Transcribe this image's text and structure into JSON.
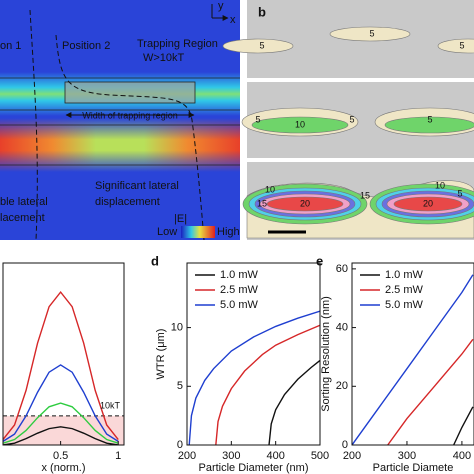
{
  "panel_a": {
    "texts": {
      "axis_x": "x",
      "axis_y": "y",
      "position_1": "on 1",
      "position_2": "Position 2",
      "trapping_region": "Trapping Region",
      "trapping_condition": "W>10kT",
      "width_label": "Width of trapping region",
      "left_note_1": "ble lateral",
      "left_note_2": "lacement",
      "right_note_1": "Significant lateral",
      "right_note_2": "displacement",
      "colorbar_title": "|E|",
      "colorbar_low": "Low",
      "colorbar_high": "High"
    }
  },
  "panel_b": {
    "label": "b",
    "contour_labels": [
      "5",
      "5",
      "5",
      "10",
      "5",
      "5",
      "5",
      "10",
      "15",
      "20",
      "20",
      "15",
      "10",
      "5"
    ]
  },
  "chart_data": [
    {
      "type": "line",
      "xlabel": "x (norm.)",
      "x": [
        0,
        0.1,
        0.2,
        0.3,
        0.4,
        0.5,
        0.6,
        0.7,
        0.8,
        0.9,
        1
      ],
      "xlim": [
        0,
        1.05
      ],
      "ylim": [
        0,
        10
      ],
      "xticks": [
        0.5,
        1
      ],
      "threshold": 1.6,
      "threshold_label": "10kT",
      "series": [
        {
          "color": "#d62728",
          "values": [
            0.3,
            1.1,
            3.0,
            5.6,
            7.6,
            8.4,
            7.6,
            5.6,
            3.0,
            1.1,
            0.3
          ]
        },
        {
          "color": "#1f3fd0",
          "values": [
            0.2,
            0.6,
            1.6,
            2.9,
            4.0,
            4.4,
            4.0,
            2.9,
            1.6,
            0.6,
            0.2
          ]
        },
        {
          "color": "#2ecc40",
          "values": [
            0.1,
            0.3,
            0.8,
            1.5,
            2.1,
            2.3,
            2.1,
            1.5,
            0.8,
            0.3,
            0.1
          ]
        },
        {
          "color": "#111111",
          "values": [
            0,
            0.1,
            0.35,
            0.65,
            0.9,
            1.0,
            0.9,
            0.65,
            0.35,
            0.1,
            0
          ]
        }
      ]
    },
    {
      "type": "line",
      "label": "d",
      "xlabel": "Particle Diameter (nm)",
      "ylabel": "WTR (μm)",
      "xlim": [
        200,
        500
      ],
      "ylim": [
        0,
        15.5
      ],
      "xticks": [
        200,
        300,
        400,
        500
      ],
      "yticks": [
        0,
        5,
        10
      ],
      "series": [
        {
          "name": "1.0 mW",
          "color": "#111111",
          "x": [
            385,
            390,
            400,
            420,
            450,
            480,
            500
          ],
          "values": [
            0,
            1.8,
            3,
            4.3,
            5.6,
            6.6,
            7.2
          ]
        },
        {
          "name": "2.5 mW",
          "color": "#d62728",
          "x": [
            265,
            270,
            280,
            300,
            330,
            370,
            400,
            450,
            500
          ],
          "values": [
            0,
            2,
            3.3,
            4.8,
            6.3,
            7.7,
            8.5,
            9.4,
            10.2
          ]
        },
        {
          "name": "5.0 mW",
          "color": "#1f3fd0",
          "x": [
            205,
            210,
            220,
            240,
            260,
            300,
            350,
            400,
            450,
            500
          ],
          "values": [
            0,
            2.5,
            4,
            5.5,
            6.5,
            8,
            9.2,
            10.1,
            10.8,
            11.4
          ]
        }
      ]
    },
    {
      "type": "line",
      "label": "e",
      "xlabel": "Particle Diamete",
      "ylabel": "Sorting Resolution (nm)",
      "xlim": [
        200,
        422
      ],
      "ylim": [
        0,
        62
      ],
      "xticks": [
        200,
        300,
        400
      ],
      "yticks": [
        0,
        20,
        40,
        60
      ],
      "series": [
        {
          "name": "1.0 mW",
          "color": "#111111",
          "x": [
            385,
            400,
            420
          ],
          "values": [
            0,
            6,
            13
          ]
        },
        {
          "name": "2.5 mW",
          "color": "#d62728",
          "x": [
            265,
            300,
            350,
            400,
            420
          ],
          "values": [
            0,
            9,
            20,
            31,
            36
          ]
        },
        {
          "name": "5.0 mW",
          "color": "#1f3fd0",
          "x": [
            200,
            250,
            300,
            350,
            400,
            420
          ],
          "values": [
            0,
            13,
            26,
            39,
            52,
            58
          ]
        }
      ]
    }
  ]
}
